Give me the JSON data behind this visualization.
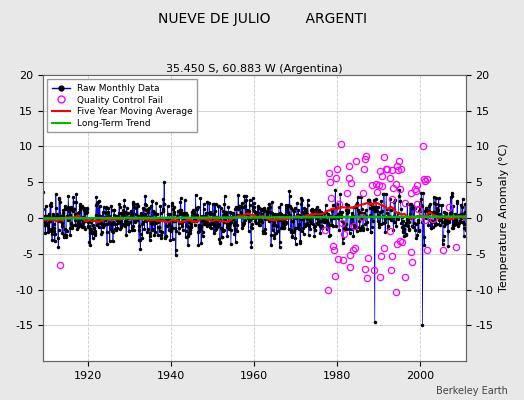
{
  "title": "NUEVE DE JULIO        ARGENTI",
  "subtitle": "35.450 S, 60.883 W (Argentina)",
  "ylabel": "Temperature Anomaly (°C)",
  "xlabel_years": [
    1920,
    1940,
    1960,
    1980,
    2000
  ],
  "xlim": [
    1909,
    2011
  ],
  "ylim": [
    -20,
    20
  ],
  "yticks": [
    20,
    15,
    10,
    5,
    0,
    -5,
    -10,
    -15
  ],
  "background_color": "#e8e8e8",
  "plot_bg_color": "#ffffff",
  "raw_line_color": "#0000dd",
  "raw_marker_color": "#000000",
  "qc_fail_color": "#ff00ff",
  "moving_avg_color": "#ff0000",
  "trend_color": "#00bb00",
  "attribution": "Berkeley Earth",
  "seed": 7
}
